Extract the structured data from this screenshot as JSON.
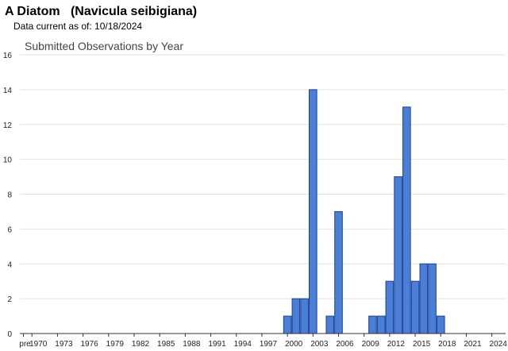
{
  "header": {
    "title": "A Diatom   (Navicula seibigiana)",
    "subtitle": "Data current as of: 10/18/2024"
  },
  "chart_data": {
    "type": "bar",
    "title": "Submitted Observations by Year",
    "xlabel": "",
    "ylabel": "",
    "ylim": [
      0,
      16
    ],
    "yticks": [
      0,
      2,
      4,
      6,
      8,
      10,
      12,
      14,
      16
    ],
    "grid": true,
    "legend": "none",
    "bar_color": "#4a7fd8",
    "bar_edge_color": "#1f3f8f",
    "categories": [
      "pre",
      "1970",
      "1971",
      "1972",
      "1973",
      "1974",
      "1975",
      "1976",
      "1977",
      "1978",
      "1979",
      "1980",
      "1981",
      "1982",
      "1983",
      "1984",
      "1985",
      "1986",
      "1987",
      "1988",
      "1989",
      "1990",
      "1991",
      "1992",
      "1993",
      "1994",
      "1995",
      "1996",
      "1997",
      "1998",
      "1999",
      "2000",
      "2001",
      "2002",
      "2003",
      "2004",
      "2005",
      "2006",
      "2007",
      "2008",
      "2009",
      "2010",
      "2011",
      "2012",
      "2013",
      "2014",
      "2015",
      "2016",
      "2017",
      "2018",
      "2019",
      "2020",
      "2021",
      "2022",
      "2023",
      "2024"
    ],
    "tick_labels": [
      "pre",
      "1970",
      "1973",
      "1976",
      "1979",
      "1982",
      "1985",
      "1988",
      "1991",
      "1994",
      "1997",
      "2000",
      "2003",
      "2006",
      "2009",
      "2012",
      "2015",
      "2018",
      "2021",
      "2024"
    ],
    "values": [
      0,
      0,
      0,
      0,
      0,
      0,
      0,
      0,
      0,
      0,
      0,
      0,
      0,
      0,
      0,
      0,
      0,
      0,
      0,
      0,
      0,
      0,
      0,
      0,
      0,
      0,
      0,
      0,
      0,
      0,
      0,
      1,
      2,
      2,
      14,
      0,
      1,
      7,
      0,
      0,
      0,
      1,
      1,
      3,
      9,
      13,
      3,
      4,
      4,
      1,
      0,
      0,
      0,
      0,
      0,
      0
    ]
  }
}
